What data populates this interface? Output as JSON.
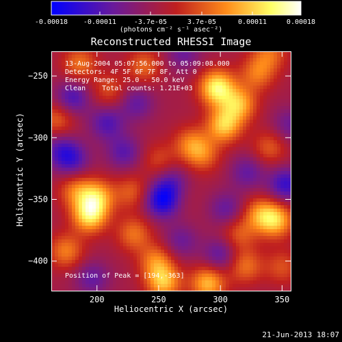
{
  "window": {
    "date_stamp": "21-Jun-2013 18:07"
  },
  "colorbar": {
    "tick_labels": [
      "-0.00018",
      "-0.00011",
      "-3.7e-05",
      "3.7e-05",
      "0.00011",
      "0.00018"
    ],
    "units_label": "(photons cm⁻² s⁻¹ asec⁻²)",
    "range": [
      -0.00018,
      0.00018
    ]
  },
  "chart_data": {
    "type": "heatmap",
    "title": "Reconstructed RHESSI Image",
    "xlabel": "Heliocentric X (arcsec)",
    "ylabel": "Heliocentric Y (arcsec)",
    "xlim": [
      163,
      357
    ],
    "ylim": [
      -424,
      -230
    ],
    "xticks": [
      200,
      250,
      300,
      350
    ],
    "yticks": [
      -250,
      -300,
      -350,
      -400
    ],
    "annotations": [
      "13-Aug-2004 05:07:56.000 to 05:09:08.000",
      "Detectors: 4F 5F 6F 7F 8F, Att 0",
      "Energy Range: 25.0 - 50.0 keV",
      "Clean    Total counts: 1.21E+03"
    ],
    "peak_label": "Position of Peak = [194,-363]",
    "peak_position": [
      194,
      -363
    ],
    "colormap": [
      "#0000ff",
      "#6a1a9a",
      "#bf1f1f",
      "#ff8c1a",
      "#ffff66",
      "#ffffff"
    ],
    "sources": [
      {
        "x": 194,
        "y": -363,
        "v": 1.0
      },
      {
        "x": 200,
        "y": -348,
        "v": 0.8
      },
      {
        "x": 183,
        "y": -343,
        "v": 0.55
      },
      {
        "x": 303,
        "y": -290,
        "v": 0.9
      },
      {
        "x": 315,
        "y": -273,
        "v": 0.8
      },
      {
        "x": 298,
        "y": -258,
        "v": 0.7
      },
      {
        "x": 330,
        "y": -248,
        "v": 0.55
      },
      {
        "x": 340,
        "y": -232,
        "v": 0.5
      },
      {
        "x": 254,
        "y": -417,
        "v": 0.85
      },
      {
        "x": 290,
        "y": -418,
        "v": 0.85
      },
      {
        "x": 345,
        "y": -367,
        "v": 0.85
      },
      {
        "x": 332,
        "y": -362,
        "v": 0.6
      },
      {
        "x": 315,
        "y": -378,
        "v": 0.45
      },
      {
        "x": 320,
        "y": -404,
        "v": 0.55
      },
      {
        "x": 175,
        "y": -392,
        "v": 0.6
      },
      {
        "x": 230,
        "y": -378,
        "v": 0.55
      },
      {
        "x": 350,
        "y": -405,
        "v": 0.4
      },
      {
        "x": 168,
        "y": -285,
        "v": 0.5
      },
      {
        "x": 186,
        "y": -240,
        "v": 0.55
      },
      {
        "x": 210,
        "y": -262,
        "v": 0.4
      },
      {
        "x": 238,
        "y": -242,
        "v": 0.5
      },
      {
        "x": 276,
        "y": -305,
        "v": 0.55
      },
      {
        "x": 286,
        "y": -314,
        "v": 0.5
      },
      {
        "x": 340,
        "y": -308,
        "v": 0.45
      },
      {
        "x": 250,
        "y": -318,
        "v": 0.35
      },
      {
        "x": 228,
        "y": -344,
        "v": 0.45
      },
      {
        "x": 265,
        "y": -342,
        "v": 0.35
      },
      {
        "x": 296,
        "y": -262,
        "v": 0.45
      },
      {
        "x": 248,
        "y": -400,
        "v": 0.6
      },
      {
        "x": 253,
        "y": -351,
        "v": -0.9
      },
      {
        "x": 262,
        "y": -338,
        "v": -0.7
      },
      {
        "x": 180,
        "y": -268,
        "v": -0.6
      },
      {
        "x": 208,
        "y": -288,
        "v": -0.55
      },
      {
        "x": 353,
        "y": -338,
        "v": -0.7
      },
      {
        "x": 222,
        "y": -312,
        "v": -0.5
      },
      {
        "x": 300,
        "y": -395,
        "v": -0.5
      },
      {
        "x": 196,
        "y": -414,
        "v": -0.45
      },
      {
        "x": 322,
        "y": -328,
        "v": -0.45
      },
      {
        "x": 232,
        "y": -272,
        "v": -0.45
      },
      {
        "x": 180,
        "y": -318,
        "v": -0.55
      },
      {
        "x": 305,
        "y": -358,
        "v": -0.45
      },
      {
        "x": 356,
        "y": -290,
        "v": -0.4
      },
      {
        "x": 270,
        "y": -232,
        "v": -0.4
      },
      {
        "x": 268,
        "y": -384,
        "v": -0.4
      },
      {
        "x": 170,
        "y": -310,
        "v": -0.45
      }
    ]
  }
}
